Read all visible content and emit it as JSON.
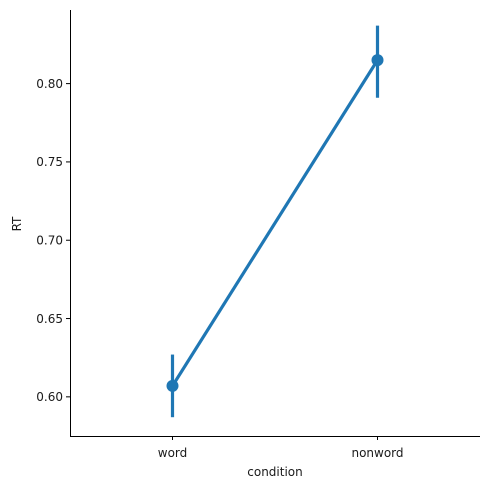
{
  "chart_data": {
    "type": "line",
    "title": "",
    "xlabel": "condition",
    "ylabel": "RT",
    "categories": [
      "word",
      "nonword"
    ],
    "series": [
      {
        "values": [
          0.607,
          0.815
        ],
        "ci_low": [
          0.587,
          0.791
        ],
        "ci_high": [
          0.627,
          0.837
        ],
        "color": "#1f77b4"
      }
    ],
    "yticks": [
      "0.60",
      "0.65",
      "0.70",
      "0.75",
      "0.80"
    ],
    "ylim": [
      0.575,
      0.847
    ],
    "grid": false,
    "legend": "none"
  }
}
